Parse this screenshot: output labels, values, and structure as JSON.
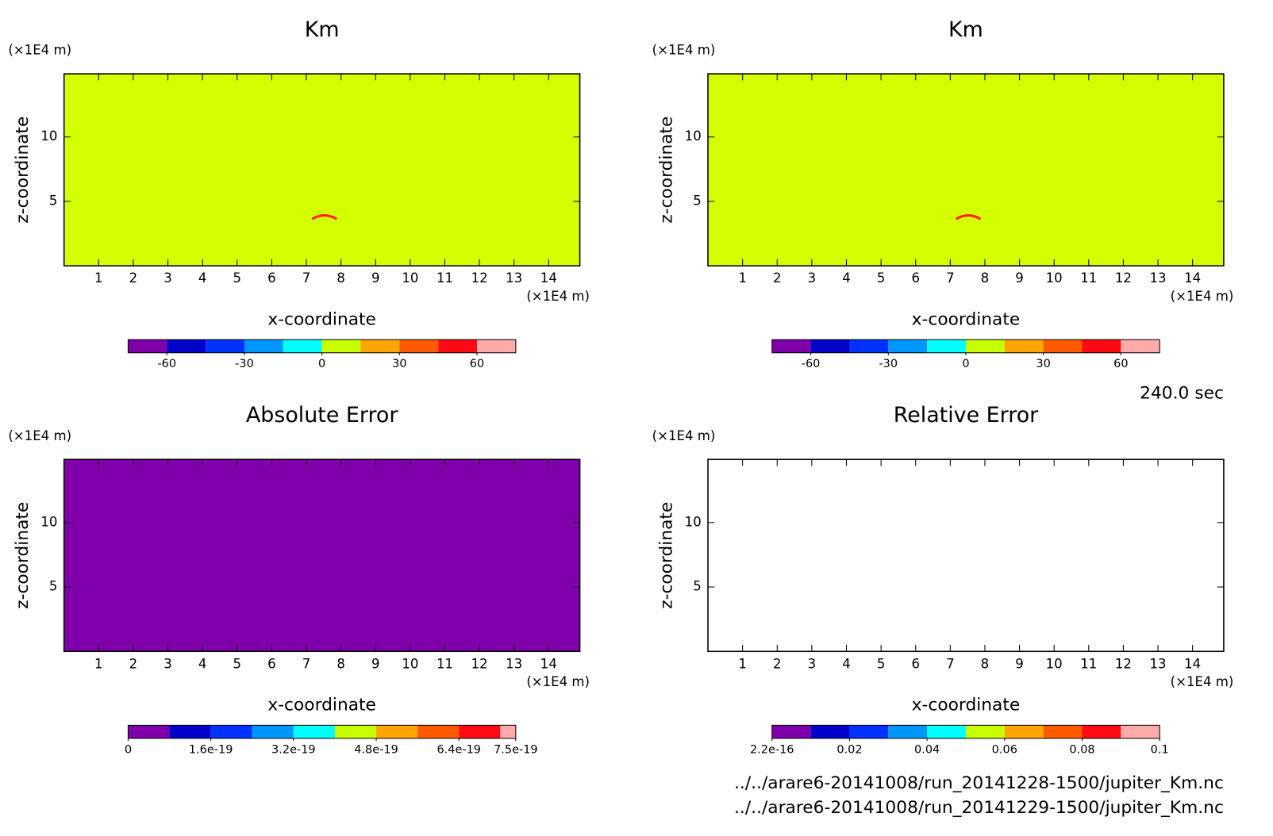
{
  "chart_data": [
    {
      "type": "contour",
      "title": "Km",
      "xlabel": "x-coordinate",
      "ylabel": "z-coordinate",
      "xunit": "(×1E4 m)",
      "yunit": "(×1E4 m)",
      "xlim": [
        0,
        14.9
      ],
      "ylim": [
        0,
        14.9
      ],
      "xticks": [
        1,
        2,
        3,
        4,
        5,
        6,
        7,
        8,
        9,
        10,
        11,
        12,
        13,
        14
      ],
      "yticks": [
        5,
        10
      ],
      "fill": "#d4ff00",
      "colorbar": {
        "bounds": [
          -75,
          -60,
          -45,
          -30,
          -15,
          0,
          15,
          30,
          45,
          60,
          75
        ],
        "colors": [
          "#7f00aa",
          "#0000c8",
          "#0032ff",
          "#0096ff",
          "#00ffff",
          "#c8ff00",
          "#ffa500",
          "#ff5a00",
          "#ff0a14",
          "#ffaaaa"
        ],
        "ticks": [
          -60,
          -30,
          0,
          30,
          60
        ]
      }
    },
    {
      "type": "contour",
      "title": "Km",
      "xlabel": "x-coordinate",
      "ylabel": "z-coordinate",
      "xunit": "(×1E4 m)",
      "yunit": "(×1E4 m)",
      "xlim": [
        0,
        14.9
      ],
      "ylim": [
        0,
        14.9
      ],
      "xticks": [
        1,
        2,
        3,
        4,
        5,
        6,
        7,
        8,
        9,
        10,
        11,
        12,
        13,
        14
      ],
      "yticks": [
        5,
        10
      ],
      "fill": "#d4ff00",
      "colorbar": {
        "bounds": [
          -75,
          -60,
          -45,
          -30,
          -15,
          0,
          15,
          30,
          45,
          60,
          75
        ],
        "colors": [
          "#7f00aa",
          "#0000c8",
          "#0032ff",
          "#0096ff",
          "#00ffff",
          "#c8ff00",
          "#ffa500",
          "#ff5a00",
          "#ff0a14",
          "#ffaaaa"
        ],
        "ticks": [
          -60,
          -30,
          0,
          30,
          60
        ]
      }
    },
    {
      "type": "contour",
      "title": "Absolute Error",
      "xlabel": "x-coordinate",
      "ylabel": "z-coordinate",
      "xunit": "(×1E4 m)",
      "yunit": "(×1E4 m)",
      "xlim": [
        0,
        14.9
      ],
      "ylim": [
        0,
        14.9
      ],
      "xticks": [
        1,
        2,
        3,
        4,
        5,
        6,
        7,
        8,
        9,
        10,
        11,
        12,
        13,
        14
      ],
      "yticks": [
        5,
        10
      ],
      "fill": "#7f00aa",
      "colorbar": {
        "bounds": [
          0,
          8e-20,
          1.6e-19,
          2.4e-19,
          3.2e-19,
          4e-19,
          4.8e-19,
          5.6e-19,
          6.4e-19,
          7.2e-19,
          7.5e-19
        ],
        "colors": [
          "#7f00aa",
          "#0000c8",
          "#0032ff",
          "#0096ff",
          "#00ffff",
          "#c8ff00",
          "#ffa500",
          "#ff5a00",
          "#ff0a14",
          "#ffaaaa"
        ],
        "ticks": [
          0,
          {
            "value": 1.6e-19,
            "label": "1.6e-19"
          },
          {
            "value": 3.2e-19,
            "label": "3.2e-19"
          },
          {
            "value": 4.8e-19,
            "label": "4.8e-19"
          },
          {
            "value": 6.4e-19,
            "label": "6.4e-19"
          },
          {
            "value": 7.5e-19,
            "label": "7.5e-19"
          }
        ]
      }
    },
    {
      "type": "contour",
      "title": "Relative Error",
      "xlabel": "x-coordinate",
      "ylabel": "z-coordinate",
      "xunit": "(×1E4 m)",
      "yunit": "(×1E4 m)",
      "xlim": [
        0,
        14.9
      ],
      "ylim": [
        0,
        14.9
      ],
      "xticks": [
        1,
        2,
        3,
        4,
        5,
        6,
        7,
        8,
        9,
        10,
        11,
        12,
        13,
        14
      ],
      "yticks": [
        5,
        10
      ],
      "fill": "#ffffff",
      "colorbar": {
        "bounds": [
          2.2e-16,
          0.01,
          0.02,
          0.03,
          0.04,
          0.05,
          0.06,
          0.07,
          0.08,
          0.09,
          0.1
        ],
        "colors": [
          "#7f00aa",
          "#0000c8",
          "#0032ff",
          "#0096ff",
          "#00ffff",
          "#c8ff00",
          "#ffa500",
          "#ff5a00",
          "#ff0a14",
          "#ffaaaa"
        ],
        "ticks": [
          {
            "value": 2.2e-16,
            "label": "2.2e-16"
          },
          0.02,
          0.04,
          0.06,
          0.08,
          0.1
        ]
      }
    }
  ],
  "time_label": "240.0 sec",
  "files": [
    "../../arare6-20141008/run_20141228-1500/jupiter_Km.nc",
    "../../arare6-20141008/run_20141229-1500/jupiter_Km.nc"
  ]
}
